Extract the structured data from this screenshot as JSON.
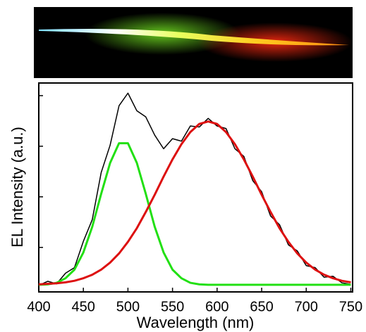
{
  "chart_data": {
    "type": "line",
    "xlabel": "Wavelength (nm)",
    "ylabel": "EL Intensity (a.u.)",
    "x": [
      400,
      410,
      420,
      430,
      440,
      450,
      460,
      470,
      480,
      490,
      500,
      510,
      520,
      530,
      540,
      550,
      560,
      570,
      580,
      590,
      600,
      610,
      620,
      630,
      640,
      650,
      660,
      670,
      680,
      690,
      700,
      710,
      720,
      730,
      740,
      750
    ],
    "series": [
      {
        "color": "#000000",
        "width": 1.5,
        "values": [
          0.25,
          0.33,
          0.28,
          0.49,
          0.6,
          1.12,
          1.55,
          2.48,
          3.02,
          3.8,
          4.05,
          3.7,
          3.58,
          3.22,
          2.95,
          3.15,
          3.1,
          3.4,
          3.38,
          3.55,
          3.4,
          3.35,
          2.95,
          2.8,
          2.32,
          2.1,
          1.62,
          1.45,
          1.05,
          0.93,
          0.64,
          0.6,
          0.41,
          0.43,
          0.3,
          0.27
        ]
      },
      {
        "color": "#22e014",
        "width": 3,
        "values": [
          0.26,
          0.27,
          0.3,
          0.39,
          0.56,
          0.9,
          1.41,
          2.06,
          2.67,
          3.06,
          3.06,
          2.67,
          2.06,
          1.41,
          0.9,
          0.56,
          0.39,
          0.3,
          0.27,
          0.26,
          0.26,
          0.26,
          0.26,
          0.26,
          0.26,
          0.26,
          0.26,
          0.26,
          0.26,
          0.26,
          0.26,
          0.26,
          0.26,
          0.26,
          0.26,
          0.26
        ]
      },
      {
        "color": "#dd1010",
        "width": 3,
        "values": [
          0.27,
          0.28,
          0.29,
          0.31,
          0.34,
          0.39,
          0.46,
          0.56,
          0.7,
          0.88,
          1.11,
          1.38,
          1.7,
          2.04,
          2.4,
          2.74,
          3.04,
          3.28,
          3.44,
          3.49,
          3.44,
          3.28,
          3.04,
          2.74,
          2.4,
          2.04,
          1.7,
          1.38,
          1.11,
          0.88,
          0.7,
          0.56,
          0.46,
          0.39,
          0.34,
          0.31
        ]
      }
    ],
    "xlim": [
      400,
      752
    ],
    "xticks": [
      400,
      450,
      500,
      550,
      600,
      650,
      700,
      750
    ],
    "ylim": [
      0.12,
      4.25
    ],
    "yticks": [
      1,
      2,
      3,
      4
    ]
  }
}
